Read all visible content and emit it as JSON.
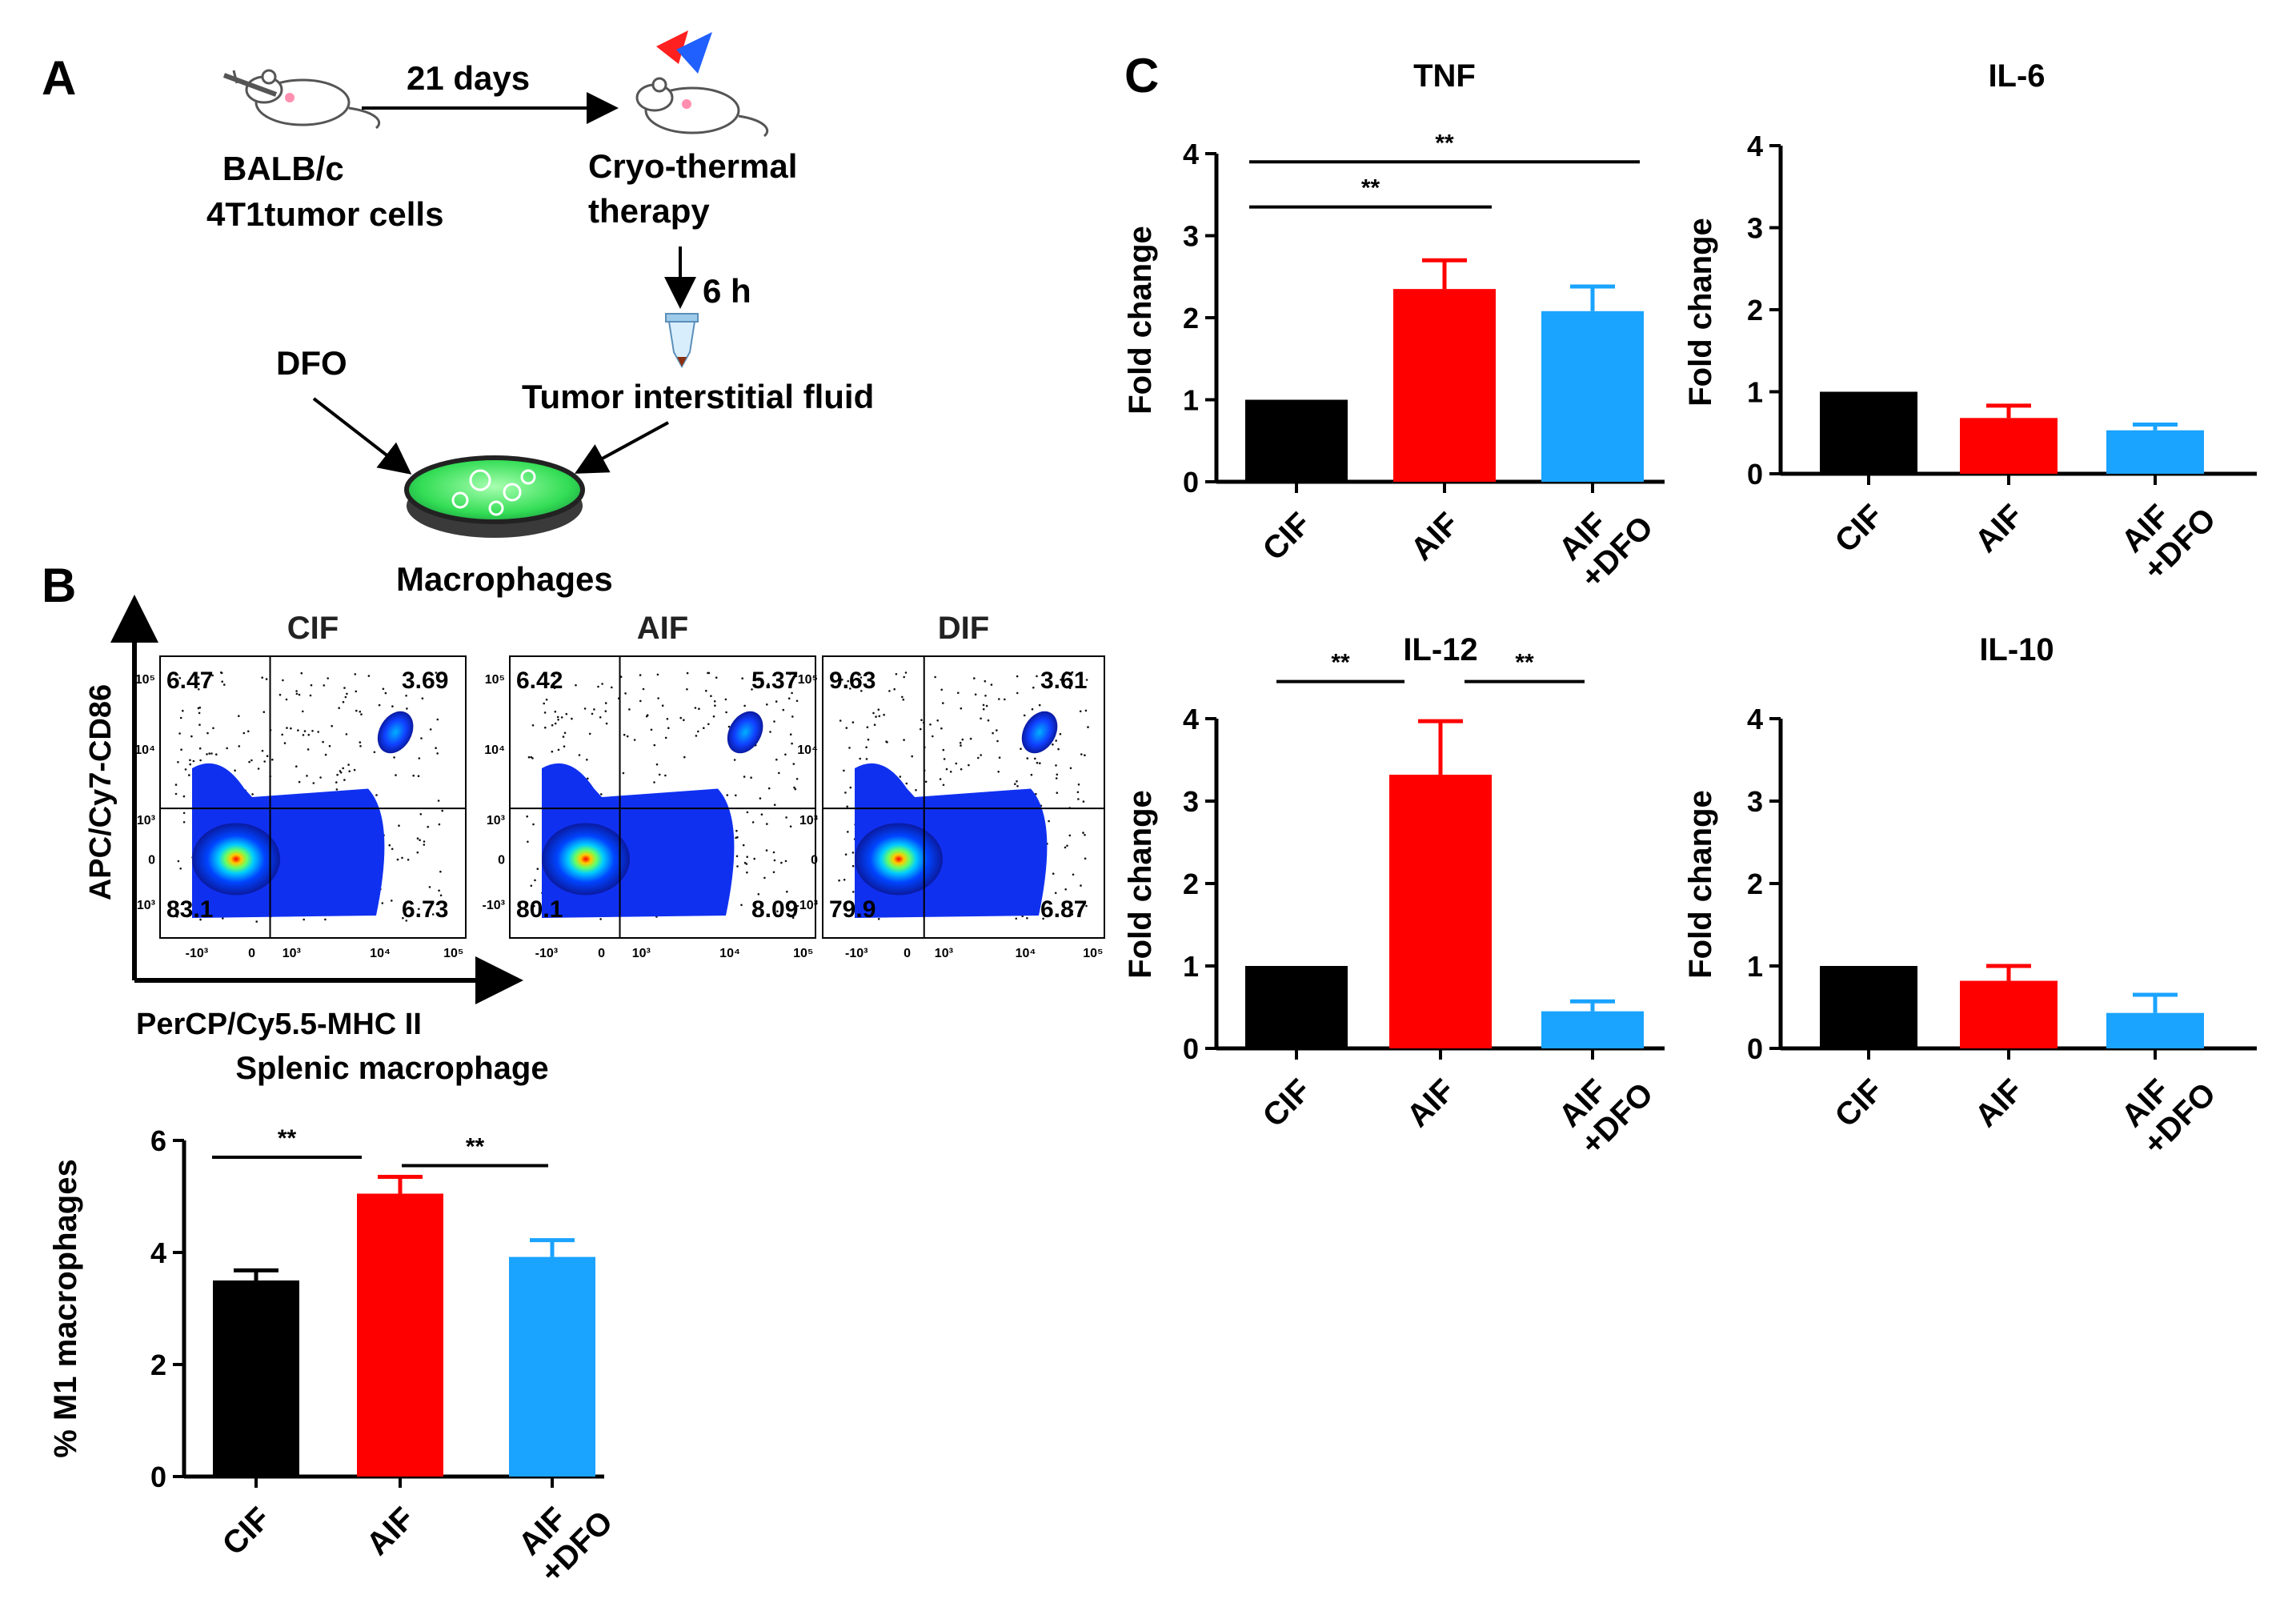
{
  "panels": {
    "a": "A",
    "b": "B",
    "c": "C"
  },
  "colors": {
    "cif": "#000000",
    "aif": "#ff0000",
    "dfo": "#1aa3ff",
    "axis": "#000000"
  },
  "schema": {
    "mouse_label_1": "BALB/c",
    "mouse_label_2": "4T1tumor cells",
    "days": "21 days",
    "therapy_1": "Cryo-thermal",
    "therapy_2": "therapy",
    "hours": "6 h",
    "dfo": "DFO",
    "fluid": "Tumor interstitial fluid",
    "macrophages": "Macrophages"
  },
  "facs": {
    "x_axis": "PerCP/Cy5.5-MHC II",
    "y_axis": "APC/Cy7-CD86",
    "ticks": [
      "10⁵",
      "10⁴",
      "10³",
      "0",
      "-10³"
    ],
    "xticks": [
      "-10³",
      "0",
      "10³",
      "10⁴",
      "10⁵"
    ],
    "plots": [
      {
        "title": "CIF",
        "ul": "6.47",
        "ur": "3.69",
        "ll": "83.1",
        "lr": "6.73"
      },
      {
        "title": "AIF",
        "ul": "6.42",
        "ur": "5.37",
        "ll": "80.1",
        "lr": "8.09"
      },
      {
        "title": "DIF",
        "ul": "9.63",
        "ur": "3.61",
        "ll": "79.9",
        "lr": "6.87"
      }
    ]
  },
  "chart_data": [
    {
      "id": "splenic",
      "type": "bar",
      "title": "Splenic macrophage",
      "ylabel": "% M1 macrophages",
      "ylim": [
        0,
        6
      ],
      "yticks": [
        0,
        2,
        4,
        6
      ],
      "categories": [
        "CIF",
        "AIF",
        "AIF+DFO"
      ],
      "cat_lines": [
        [
          "CIF"
        ],
        [
          "AIF"
        ],
        [
          "AIF",
          "+DFO"
        ]
      ],
      "values": [
        3.5,
        5.05,
        3.92
      ],
      "errors": [
        0.18,
        0.3,
        0.3
      ],
      "significance": [
        {
          "from": 0,
          "to": 1,
          "label": "**"
        },
        {
          "from": 1,
          "to": 2,
          "label": "**"
        }
      ]
    },
    {
      "id": "tnf",
      "type": "bar",
      "title": "TNF",
      "ylabel": "Fold change",
      "ylim": [
        0,
        4
      ],
      "yticks": [
        0,
        1,
        2,
        3,
        4
      ],
      "categories": [
        "CIF",
        "AIF",
        "AIF+DFO"
      ],
      "cat_lines": [
        [
          "CIF"
        ],
        [
          "AIF"
        ],
        [
          "AIF",
          "+DFO"
        ]
      ],
      "values": [
        1.0,
        2.35,
        2.08
      ],
      "errors": [
        0,
        0.35,
        0.3
      ],
      "significance": [
        {
          "from": 0,
          "to": 1,
          "label": "**"
        },
        {
          "from": 0,
          "to": 2,
          "label": "**"
        }
      ]
    },
    {
      "id": "il6",
      "type": "bar",
      "title": "IL-6",
      "ylabel": "Fold change",
      "ylim": [
        0,
        4
      ],
      "yticks": [
        0,
        1,
        2,
        3,
        4
      ],
      "categories": [
        "CIF",
        "AIF",
        "AIF+DFO"
      ],
      "cat_lines": [
        [
          "CIF"
        ],
        [
          "AIF"
        ],
        [
          "AIF",
          "+DFO"
        ]
      ],
      "values": [
        1.0,
        0.68,
        0.53
      ],
      "errors": [
        0,
        0.15,
        0.07
      ],
      "significance": []
    },
    {
      "id": "il12",
      "type": "bar",
      "title": "IL-12",
      "ylabel": "Fold change",
      "ylim": [
        0,
        4
      ],
      "yticks": [
        0,
        1,
        2,
        3,
        4
      ],
      "categories": [
        "CIF",
        "AIF",
        "AIF+DFO"
      ],
      "cat_lines": [
        [
          "CIF"
        ],
        [
          "AIF"
        ],
        [
          "AIF",
          "+DFO"
        ]
      ],
      "values": [
        1.0,
        3.32,
        0.45
      ],
      "errors": [
        0,
        0.65,
        0.12
      ],
      "significance": [
        {
          "from": 0,
          "to": 1,
          "label": "**"
        },
        {
          "from": 1,
          "to": 2,
          "label": "**"
        }
      ]
    },
    {
      "id": "il10",
      "type": "bar",
      "title": "IL-10",
      "ylabel": "Fold change",
      "ylim": [
        0,
        4
      ],
      "yticks": [
        0,
        1,
        2,
        3,
        4
      ],
      "categories": [
        "CIF",
        "AIF",
        "AIF+DFO"
      ],
      "cat_lines": [
        [
          "CIF"
        ],
        [
          "AIF"
        ],
        [
          "AIF",
          "+DFO"
        ]
      ],
      "values": [
        1.0,
        0.82,
        0.43
      ],
      "errors": [
        0,
        0.18,
        0.22
      ],
      "significance": []
    }
  ]
}
